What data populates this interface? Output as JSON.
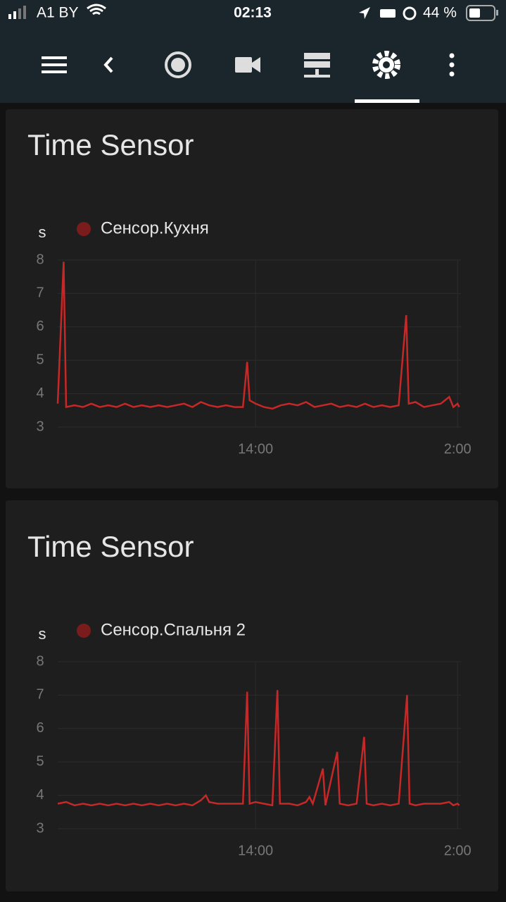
{
  "status_bar": {
    "carrier": "A1 BY",
    "time": "02:13",
    "battery": "44 %"
  },
  "chart_data": [
    {
      "type": "line",
      "title": "Time Sensor",
      "y_label": "s",
      "x": [
        2.25,
        2.6,
        2.75,
        3.25,
        3.75,
        4.25,
        4.75,
        5.25,
        5.75,
        6.25,
        6.75,
        7.25,
        7.75,
        8.25,
        8.75,
        9.25,
        9.75,
        10.25,
        10.75,
        11.25,
        11.75,
        12.25,
        12.75,
        13.25,
        13.5,
        13.65,
        14.0,
        14.5,
        15.0,
        15.5,
        16.0,
        16.5,
        17.0,
        17.5,
        18.0,
        18.5,
        19.0,
        19.5,
        20.0,
        20.5,
        21.0,
        21.5,
        22.0,
        22.5,
        22.95,
        23.1,
        23.5,
        24.0,
        24.5,
        25.0,
        25.5,
        25.75,
        26.0,
        26.1
      ],
      "series": [
        {
          "name": "Сенсор.Кухня",
          "color": "#c62828",
          "values": [
            3.7,
            7.95,
            3.6,
            3.65,
            3.6,
            3.7,
            3.6,
            3.65,
            3.6,
            3.7,
            3.6,
            3.65,
            3.6,
            3.65,
            3.6,
            3.65,
            3.7,
            3.6,
            3.75,
            3.65,
            3.6,
            3.65,
            3.6,
            3.6,
            4.95,
            3.8,
            3.7,
            3.6,
            3.55,
            3.65,
            3.7,
            3.65,
            3.75,
            3.6,
            3.65,
            3.7,
            3.6,
            3.65,
            3.6,
            3.7,
            3.6,
            3.65,
            3.6,
            3.65,
            6.35,
            3.7,
            3.75,
            3.6,
            3.65,
            3.7,
            3.9,
            3.6,
            3.7,
            3.6
          ]
        }
      ],
      "xlim": [
        2.25,
        26.2
      ],
      "xticks": [
        {
          "value": 14,
          "label": "14:00"
        },
        {
          "value": 26,
          "label": "2:00"
        }
      ],
      "ylim": [
        3,
        8
      ],
      "yticks": [
        3,
        4,
        5,
        6,
        7,
        8
      ],
      "grid": true
    },
    {
      "type": "line",
      "title": "Time Sensor",
      "y_label": "s",
      "x": [
        2.25,
        2.75,
        3.25,
        3.75,
        4.25,
        4.75,
        5.25,
        5.75,
        6.25,
        6.75,
        7.25,
        7.75,
        8.25,
        8.75,
        9.25,
        9.75,
        10.25,
        10.75,
        11.05,
        11.25,
        11.75,
        12.25,
        12.75,
        13.25,
        13.5,
        13.65,
        14.0,
        14.5,
        15.0,
        15.3,
        15.45,
        16.0,
        16.5,
        17.0,
        17.2,
        17.4,
        18.0,
        18.15,
        18.85,
        19.0,
        19.5,
        20.0,
        20.45,
        20.6,
        21.0,
        21.5,
        22.0,
        22.5,
        23.0,
        23.15,
        23.5,
        24.0,
        24.5,
        25.0,
        25.5,
        25.75,
        26.0,
        26.1
      ],
      "series": [
        {
          "name": "Сенсор.Спальня 2",
          "color": "#c62828",
          "values": [
            3.75,
            3.8,
            3.7,
            3.75,
            3.7,
            3.75,
            3.7,
            3.75,
            3.7,
            3.75,
            3.7,
            3.75,
            3.7,
            3.75,
            3.7,
            3.75,
            3.7,
            3.85,
            4.0,
            3.8,
            3.75,
            3.75,
            3.75,
            3.75,
            7.1,
            3.75,
            3.8,
            3.75,
            3.7,
            7.15,
            3.75,
            3.75,
            3.7,
            3.8,
            3.95,
            3.75,
            4.8,
            3.7,
            5.3,
            3.75,
            3.7,
            3.75,
            5.75,
            3.75,
            3.7,
            3.75,
            3.7,
            3.75,
            7.0,
            3.75,
            3.7,
            3.75,
            3.75,
            3.75,
            3.8,
            3.7,
            3.75,
            3.7
          ]
        }
      ],
      "xlim": [
        2.25,
        26.2
      ],
      "xticks": [
        {
          "value": 14,
          "label": "14:00"
        },
        {
          "value": 26,
          "label": "2:00"
        }
      ],
      "ylim": [
        3,
        8
      ],
      "yticks": [
        3,
        4,
        5,
        6,
        7,
        8
      ],
      "grid": true
    }
  ]
}
